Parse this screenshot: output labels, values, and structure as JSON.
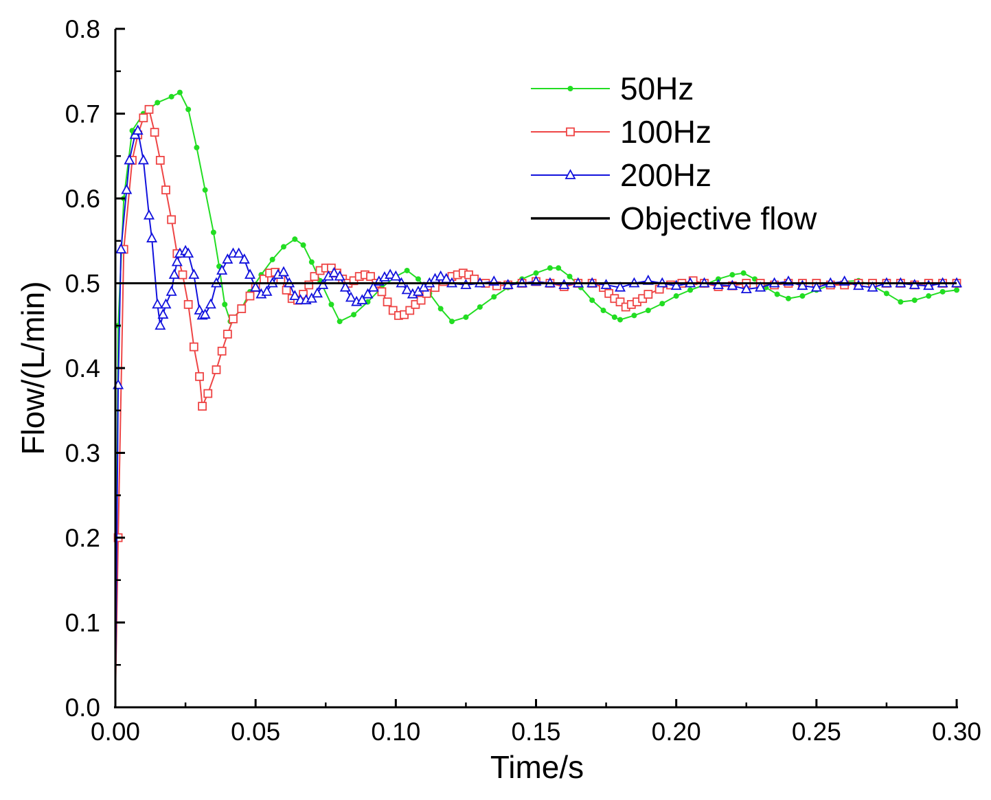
{
  "chart_data": {
    "type": "line",
    "title": "",
    "xlabel": "Time/s",
    "ylabel": "Flow/(L/min)",
    "xlim": [
      0,
      0.3
    ],
    "ylim": [
      0,
      0.8
    ],
    "x_ticks": [
      "0.00",
      "0.05",
      "0.10",
      "0.15",
      "0.20",
      "0.25",
      "0.30"
    ],
    "y_ticks": [
      "0.0",
      "0.1",
      "0.2",
      "0.3",
      "0.4",
      "0.5",
      "0.6",
      "0.7",
      "0.8"
    ],
    "legend_position": "top-right",
    "series": [
      {
        "name": "50Hz",
        "color": "#22dd22",
        "marker": "filled-circle",
        "points": [
          [
            0,
            0
          ],
          [
            0.001,
            0.45
          ],
          [
            0.003,
            0.6
          ],
          [
            0.006,
            0.68
          ],
          [
            0.01,
            0.7
          ],
          [
            0.015,
            0.713
          ],
          [
            0.02,
            0.72
          ],
          [
            0.023,
            0.725
          ],
          [
            0.026,
            0.705
          ],
          [
            0.029,
            0.66
          ],
          [
            0.032,
            0.61
          ],
          [
            0.035,
            0.56
          ],
          [
            0.037,
            0.52
          ],
          [
            0.039,
            0.475
          ],
          [
            0.041,
            0.455
          ],
          [
            0.045,
            0.47
          ],
          [
            0.048,
            0.49
          ],
          [
            0.052,
            0.51
          ],
          [
            0.056,
            0.528
          ],
          [
            0.06,
            0.543
          ],
          [
            0.064,
            0.552
          ],
          [
            0.067,
            0.545
          ],
          [
            0.07,
            0.525
          ],
          [
            0.073,
            0.503
          ],
          [
            0.077,
            0.475
          ],
          [
            0.08,
            0.455
          ],
          [
            0.085,
            0.463
          ],
          [
            0.09,
            0.478
          ],
          [
            0.095,
            0.495
          ],
          [
            0.1,
            0.508
          ],
          [
            0.104,
            0.515
          ],
          [
            0.108,
            0.505
          ],
          [
            0.112,
            0.488
          ],
          [
            0.116,
            0.47
          ],
          [
            0.12,
            0.455
          ],
          [
            0.125,
            0.46
          ],
          [
            0.13,
            0.472
          ],
          [
            0.135,
            0.484
          ],
          [
            0.14,
            0.495
          ],
          [
            0.145,
            0.505
          ],
          [
            0.15,
            0.512
          ],
          [
            0.155,
            0.518
          ],
          [
            0.158,
            0.518
          ],
          [
            0.162,
            0.508
          ],
          [
            0.166,
            0.495
          ],
          [
            0.17,
            0.48
          ],
          [
            0.174,
            0.468
          ],
          [
            0.178,
            0.46
          ],
          [
            0.18,
            0.457
          ],
          [
            0.185,
            0.462
          ],
          [
            0.19,
            0.468
          ],
          [
            0.195,
            0.476
          ],
          [
            0.2,
            0.485
          ],
          [
            0.205,
            0.492
          ],
          [
            0.21,
            0.498
          ],
          [
            0.215,
            0.505
          ],
          [
            0.22,
            0.51
          ],
          [
            0.224,
            0.512
          ],
          [
            0.228,
            0.505
          ],
          [
            0.232,
            0.495
          ],
          [
            0.236,
            0.487
          ],
          [
            0.24,
            0.482
          ],
          [
            0.245,
            0.485
          ],
          [
            0.25,
            0.492
          ],
          [
            0.255,
            0.498
          ],
          [
            0.26,
            0.502
          ],
          [
            0.265,
            0.503
          ],
          [
            0.27,
            0.497
          ],
          [
            0.275,
            0.488
          ],
          [
            0.28,
            0.478
          ],
          [
            0.285,
            0.48
          ],
          [
            0.29,
            0.485
          ],
          [
            0.295,
            0.49
          ],
          [
            0.3,
            0.492
          ]
        ]
      },
      {
        "name": "100Hz",
        "color": "#ee4444",
        "marker": "open-square",
        "points": [
          [
            0,
            0.01
          ],
          [
            0.001,
            0.2
          ],
          [
            0.003,
            0.54
          ],
          [
            0.006,
            0.645
          ],
          [
            0.008,
            0.675
          ],
          [
            0.01,
            0.695
          ],
          [
            0.012,
            0.705
          ],
          [
            0.014,
            0.678
          ],
          [
            0.016,
            0.645
          ],
          [
            0.018,
            0.61
          ],
          [
            0.02,
            0.575
          ],
          [
            0.022,
            0.535
          ],
          [
            0.024,
            0.51
          ],
          [
            0.026,
            0.475
          ],
          [
            0.028,
            0.425
          ],
          [
            0.03,
            0.39
          ],
          [
            0.031,
            0.355
          ],
          [
            0.033,
            0.37
          ],
          [
            0.036,
            0.398
          ],
          [
            0.038,
            0.42
          ],
          [
            0.04,
            0.44
          ],
          [
            0.042,
            0.458
          ],
          [
            0.045,
            0.47
          ],
          [
            0.048,
            0.485
          ],
          [
            0.05,
            0.495
          ],
          [
            0.053,
            0.505
          ],
          [
            0.055,
            0.512
          ],
          [
            0.057,
            0.513
          ],
          [
            0.059,
            0.505
          ],
          [
            0.061,
            0.492
          ],
          [
            0.063,
            0.482
          ],
          [
            0.065,
            0.48
          ],
          [
            0.067,
            0.487
          ],
          [
            0.069,
            0.498
          ],
          [
            0.071,
            0.508
          ],
          [
            0.073,
            0.515
          ],
          [
            0.075,
            0.518
          ],
          [
            0.077,
            0.518
          ],
          [
            0.079,
            0.512
          ],
          [
            0.081,
            0.505
          ],
          [
            0.083,
            0.5
          ],
          [
            0.085,
            0.503
          ],
          [
            0.087,
            0.508
          ],
          [
            0.089,
            0.51
          ],
          [
            0.091,
            0.508
          ],
          [
            0.093,
            0.5
          ],
          [
            0.095,
            0.49
          ],
          [
            0.097,
            0.478
          ],
          [
            0.099,
            0.468
          ],
          [
            0.101,
            0.462
          ],
          [
            0.103,
            0.463
          ],
          [
            0.105,
            0.468
          ],
          [
            0.107,
            0.475
          ],
          [
            0.109,
            0.48
          ],
          [
            0.111,
            0.488
          ],
          [
            0.114,
            0.495
          ],
          [
            0.117,
            0.502
          ],
          [
            0.12,
            0.508
          ],
          [
            0.122,
            0.51
          ],
          [
            0.124,
            0.512
          ],
          [
            0.126,
            0.51
          ],
          [
            0.128,
            0.505
          ],
          [
            0.132,
            0.5
          ],
          [
            0.136,
            0.497
          ],
          [
            0.14,
            0.498
          ],
          [
            0.145,
            0.5
          ],
          [
            0.15,
            0.502
          ],
          [
            0.155,
            0.5
          ],
          [
            0.16,
            0.496
          ],
          [
            0.165,
            0.5
          ],
          [
            0.17,
            0.5
          ],
          [
            0.174,
            0.495
          ],
          [
            0.176,
            0.488
          ],
          [
            0.178,
            0.482
          ],
          [
            0.18,
            0.478
          ],
          [
            0.182,
            0.472
          ],
          [
            0.184,
            0.475
          ],
          [
            0.186,
            0.478
          ],
          [
            0.188,
            0.482
          ],
          [
            0.19,
            0.487
          ],
          [
            0.194,
            0.493
          ],
          [
            0.198,
            0.498
          ],
          [
            0.202,
            0.5
          ],
          [
            0.206,
            0.503
          ],
          [
            0.21,
            0.5
          ],
          [
            0.215,
            0.496
          ],
          [
            0.22,
            0.497
          ],
          [
            0.225,
            0.5
          ],
          [
            0.23,
            0.5
          ],
          [
            0.235,
            0.498
          ],
          [
            0.24,
            0.5
          ],
          [
            0.245,
            0.5
          ],
          [
            0.25,
            0.5
          ],
          [
            0.255,
            0.498
          ],
          [
            0.26,
            0.498
          ],
          [
            0.265,
            0.5
          ],
          [
            0.27,
            0.5
          ],
          [
            0.275,
            0.5
          ],
          [
            0.28,
            0.5
          ],
          [
            0.285,
            0.498
          ],
          [
            0.29,
            0.5
          ],
          [
            0.295,
            0.5
          ],
          [
            0.3,
            0.5
          ]
        ]
      },
      {
        "name": "200Hz",
        "color": "#1111dd",
        "marker": "open-triangle",
        "points": [
          [
            0,
            0
          ],
          [
            0.001,
            0.38
          ],
          [
            0.002,
            0.54
          ],
          [
            0.004,
            0.61
          ],
          [
            0.005,
            0.645
          ],
          [
            0.007,
            0.675
          ],
          [
            0.008,
            0.68
          ],
          [
            0.01,
            0.645
          ],
          [
            0.012,
            0.58
          ],
          [
            0.013,
            0.553
          ],
          [
            0.015,
            0.475
          ],
          [
            0.016,
            0.45
          ],
          [
            0.017,
            0.463
          ],
          [
            0.018,
            0.475
          ],
          [
            0.02,
            0.49
          ],
          [
            0.021,
            0.51
          ],
          [
            0.022,
            0.525
          ],
          [
            0.023,
            0.535
          ],
          [
            0.025,
            0.538
          ],
          [
            0.026,
            0.535
          ],
          [
            0.028,
            0.51
          ],
          [
            0.03,
            0.468
          ],
          [
            0.031,
            0.462
          ],
          [
            0.032,
            0.463
          ],
          [
            0.034,
            0.475
          ],
          [
            0.036,
            0.5
          ],
          [
            0.038,
            0.515
          ],
          [
            0.04,
            0.528
          ],
          [
            0.042,
            0.535
          ],
          [
            0.044,
            0.535
          ],
          [
            0.046,
            0.528
          ],
          [
            0.048,
            0.51
          ],
          [
            0.05,
            0.495
          ],
          [
            0.052,
            0.487
          ],
          [
            0.054,
            0.49
          ],
          [
            0.056,
            0.5
          ],
          [
            0.058,
            0.51
          ],
          [
            0.06,
            0.513
          ],
          [
            0.062,
            0.5
          ],
          [
            0.064,
            0.485
          ],
          [
            0.066,
            0.48
          ],
          [
            0.068,
            0.48
          ],
          [
            0.07,
            0.482
          ],
          [
            0.072,
            0.488
          ],
          [
            0.074,
            0.498
          ],
          [
            0.076,
            0.508
          ],
          [
            0.078,
            0.512
          ],
          [
            0.08,
            0.508
          ],
          [
            0.082,
            0.495
          ],
          [
            0.084,
            0.483
          ],
          [
            0.086,
            0.478
          ],
          [
            0.088,
            0.48
          ],
          [
            0.09,
            0.487
          ],
          [
            0.092,
            0.495
          ],
          [
            0.094,
            0.502
          ],
          [
            0.096,
            0.507
          ],
          [
            0.098,
            0.51
          ],
          [
            0.1,
            0.508
          ],
          [
            0.102,
            0.5
          ],
          [
            0.104,
            0.492
          ],
          [
            0.106,
            0.487
          ],
          [
            0.108,
            0.49
          ],
          [
            0.11,
            0.495
          ],
          [
            0.112,
            0.5
          ],
          [
            0.114,
            0.505
          ],
          [
            0.116,
            0.508
          ],
          [
            0.118,
            0.505
          ],
          [
            0.12,
            0.5
          ],
          [
            0.125,
            0.498
          ],
          [
            0.13,
            0.5
          ],
          [
            0.135,
            0.502
          ],
          [
            0.14,
            0.498
          ],
          [
            0.145,
            0.5
          ],
          [
            0.15,
            0.502
          ],
          [
            0.155,
            0.5
          ],
          [
            0.16,
            0.498
          ],
          [
            0.165,
            0.5
          ],
          [
            0.17,
            0.5
          ],
          [
            0.175,
            0.498
          ],
          [
            0.18,
            0.495
          ],
          [
            0.185,
            0.5
          ],
          [
            0.19,
            0.503
          ],
          [
            0.195,
            0.5
          ],
          [
            0.2,
            0.497
          ],
          [
            0.205,
            0.5
          ],
          [
            0.21,
            0.5
          ],
          [
            0.215,
            0.498
          ],
          [
            0.22,
            0.497
          ],
          [
            0.225,
            0.493
          ],
          [
            0.23,
            0.495
          ],
          [
            0.235,
            0.5
          ],
          [
            0.24,
            0.502
          ],
          [
            0.245,
            0.497
          ],
          [
            0.25,
            0.495
          ],
          [
            0.255,
            0.5
          ],
          [
            0.26,
            0.502
          ],
          [
            0.265,
            0.497
          ],
          [
            0.27,
            0.495
          ],
          [
            0.275,
            0.5
          ],
          [
            0.28,
            0.5
          ],
          [
            0.285,
            0.498
          ],
          [
            0.29,
            0.497
          ],
          [
            0.295,
            0.5
          ],
          [
            0.3,
            0.5
          ]
        ]
      },
      {
        "name": "Objective flow",
        "color": "#000000",
        "marker": "none",
        "points": [
          [
            0,
            0.5
          ],
          [
            0.3,
            0.5
          ]
        ]
      }
    ]
  }
}
